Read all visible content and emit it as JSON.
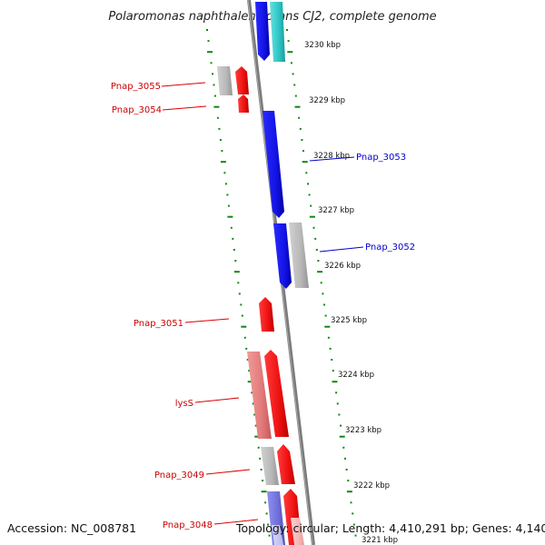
{
  "title": "Polaromonas naphthalenivorans CJ2, complete genome",
  "accession": "Accession: NC_008781",
  "summary": "Topology: circular; Length: 4,410,291 bp; Genes: 4,140",
  "kbp_labels": [
    "3230 kbp",
    "3229 kbp",
    "3228 kbp",
    "3227 kbp",
    "3226 kbp",
    "3225 kbp",
    "3224 kbp",
    "3223 kbp",
    "3222 kbp",
    "3221 kbp"
  ],
  "gene_labels": {
    "pnap_3055": "Pnap_3055",
    "pnap_3054": "Pnap_3054",
    "pnap_3053": "Pnap_3053",
    "pnap_3052": "Pnap_3052",
    "pnap_3051": "Pnap_3051",
    "lyss": "lysS",
    "pnap_3049": "Pnap_3049",
    "pnap_3048": "Pnap_3048"
  },
  "colors": {
    "forward_red": "#ee1111",
    "reverse_blue": "#1a1ae6",
    "pale_red": "#e88080",
    "grey": "#b8b8b8",
    "cyan": "#33cccc",
    "lavender": "#7070d8",
    "pink": "#f4b6b6",
    "dots": "#118811"
  }
}
